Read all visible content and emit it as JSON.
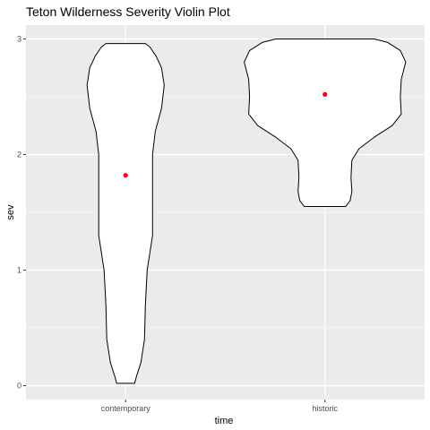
{
  "chart_data": {
    "type": "violin",
    "title": "Teton Wilderness Severity Violin Plot",
    "xlabel": "time",
    "ylabel": "sev",
    "categories": [
      "contemporary",
      "historic"
    ],
    "y_ticks": [
      0,
      1,
      2,
      3
    ],
    "ylim": [
      -0.12,
      3.12
    ],
    "grid": true,
    "colors": {
      "panel": "#ebebeb",
      "grid_major": "#ffffff",
      "violin_fill": "#ffffff",
      "violin_outline": "#000000",
      "point": "#ff0000",
      "tick": "#333333"
    },
    "violins": [
      {
        "category": "contemporary",
        "mean": 1.82,
        "min": 0.02,
        "max": 2.96,
        "density_profile": [
          [
            0.02,
            0.1
          ],
          [
            0.08,
            0.12
          ],
          [
            0.2,
            0.17
          ],
          [
            0.4,
            0.21
          ],
          [
            0.7,
            0.22
          ],
          [
            1.0,
            0.24
          ],
          [
            1.3,
            0.3
          ],
          [
            1.5,
            0.3
          ],
          [
            1.8,
            0.3
          ],
          [
            2.0,
            0.3
          ],
          [
            2.2,
            0.33
          ],
          [
            2.4,
            0.4
          ],
          [
            2.6,
            0.43
          ],
          [
            2.75,
            0.4
          ],
          [
            2.85,
            0.34
          ],
          [
            2.93,
            0.27
          ],
          [
            2.96,
            0.22
          ]
        ]
      },
      {
        "category": "historic",
        "mean": 2.52,
        "min": 1.55,
        "max": 3.0,
        "density_profile": [
          [
            1.55,
            0.23
          ],
          [
            1.6,
            0.28
          ],
          [
            1.68,
            0.3
          ],
          [
            1.8,
            0.29
          ],
          [
            1.95,
            0.3
          ],
          [
            2.05,
            0.38
          ],
          [
            2.15,
            0.55
          ],
          [
            2.25,
            0.75
          ],
          [
            2.35,
            0.85
          ],
          [
            2.5,
            0.84
          ],
          [
            2.65,
            0.85
          ],
          [
            2.8,
            0.9
          ],
          [
            2.9,
            0.84
          ],
          [
            2.97,
            0.7
          ],
          [
            3.0,
            0.55
          ]
        ]
      }
    ]
  }
}
